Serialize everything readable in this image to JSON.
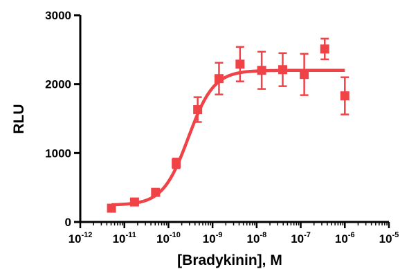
{
  "chart_data": {
    "type": "scatter",
    "xlabel": "[Bradykinin], M",
    "ylabel": "RLU",
    "x_scale": "log",
    "xlim": [
      1e-12,
      1e-05
    ],
    "ylim": [
      0,
      3000
    ],
    "grid": false,
    "legend": "none",
    "color": "#f04348",
    "x_ticks": [
      {
        "base": "10",
        "exp": "-12",
        "value": 1e-12
      },
      {
        "base": "10",
        "exp": "-11",
        "value": 1e-11
      },
      {
        "base": "10",
        "exp": "-10",
        "value": 1e-10
      },
      {
        "base": "10",
        "exp": "-9",
        "value": 1e-09
      },
      {
        "base": "10",
        "exp": "-8",
        "value": 1e-08
      },
      {
        "base": "10",
        "exp": "-7",
        "value": 1e-07
      },
      {
        "base": "10",
        "exp": "-6",
        "value": 1e-06
      },
      {
        "base": "10",
        "exp": "-5",
        "value": 1e-05
      }
    ],
    "y_ticks": [
      {
        "label": "0",
        "value": 0
      },
      {
        "label": "1000",
        "value": 1000
      },
      {
        "label": "2000",
        "value": 2000
      },
      {
        "label": "3000",
        "value": 3000
      }
    ],
    "series": [
      {
        "points": [
          {
            "x": 5.1e-12,
            "y": 200,
            "err": 40
          },
          {
            "x": 1.7e-11,
            "y": 290,
            "err": 40
          },
          {
            "x": 5.1e-11,
            "y": 430,
            "err": 40
          },
          {
            "x": 1.5e-10,
            "y": 850,
            "err": 70
          },
          {
            "x": 4.6e-10,
            "y": 1630,
            "err": 180
          },
          {
            "x": 1.4e-09,
            "y": 2080,
            "err": 230
          },
          {
            "x": 4.2e-09,
            "y": 2290,
            "err": 250
          },
          {
            "x": 1.3e-08,
            "y": 2200,
            "err": 270
          },
          {
            "x": 3.9e-08,
            "y": 2210,
            "err": 240
          },
          {
            "x": 1.2e-07,
            "y": 2140,
            "err": 300
          },
          {
            "x": 3.5e-07,
            "y": 2510,
            "err": 150
          },
          {
            "x": 1e-06,
            "y": 1830,
            "err": 270
          }
        ]
      }
    ],
    "fit": {
      "bottom": 245,
      "top": 2200,
      "log_ec50": -9.55,
      "hill": 1.5,
      "x_range": [
        5.1e-12,
        1e-06
      ]
    }
  }
}
